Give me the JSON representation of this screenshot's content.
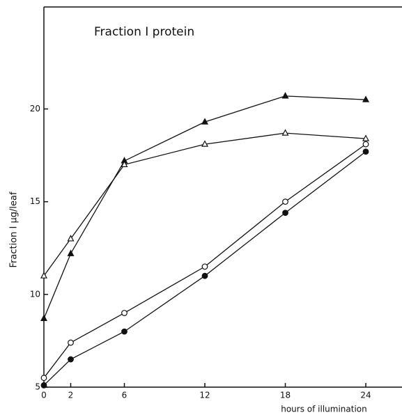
{
  "chart_data": {
    "type": "line",
    "title": "Fraction I protein",
    "x_label": "hours of illumination",
    "y_label": "Fraction I µg/leaf",
    "x": [
      0,
      2,
      6,
      12,
      18,
      24
    ],
    "series": [
      {
        "marker": "filled-triangle",
        "color": "#111111",
        "values": [
          8.7,
          12.2,
          17.2,
          19.3,
          20.7,
          20.5
        ]
      },
      {
        "marker": "open-triangle",
        "color": "#111111",
        "values": [
          11.0,
          13.0,
          17.0,
          18.1,
          18.7,
          18.4
        ]
      },
      {
        "marker": "open-circle",
        "color": "#111111",
        "values": [
          5.5,
          7.4,
          9.0,
          11.5,
          15.0,
          18.1
        ]
      },
      {
        "marker": "filled-circle",
        "color": "#111111",
        "values": [
          5.1,
          6.5,
          8.0,
          11.0,
          14.4,
          17.7
        ]
      }
    ],
    "xlim": [
      0,
      26.7
    ],
    "xticks": [
      0,
      2,
      6,
      12,
      18,
      24
    ],
    "ylim": [
      5,
      25.5
    ],
    "yticks": [
      5,
      10,
      15,
      20
    ]
  }
}
